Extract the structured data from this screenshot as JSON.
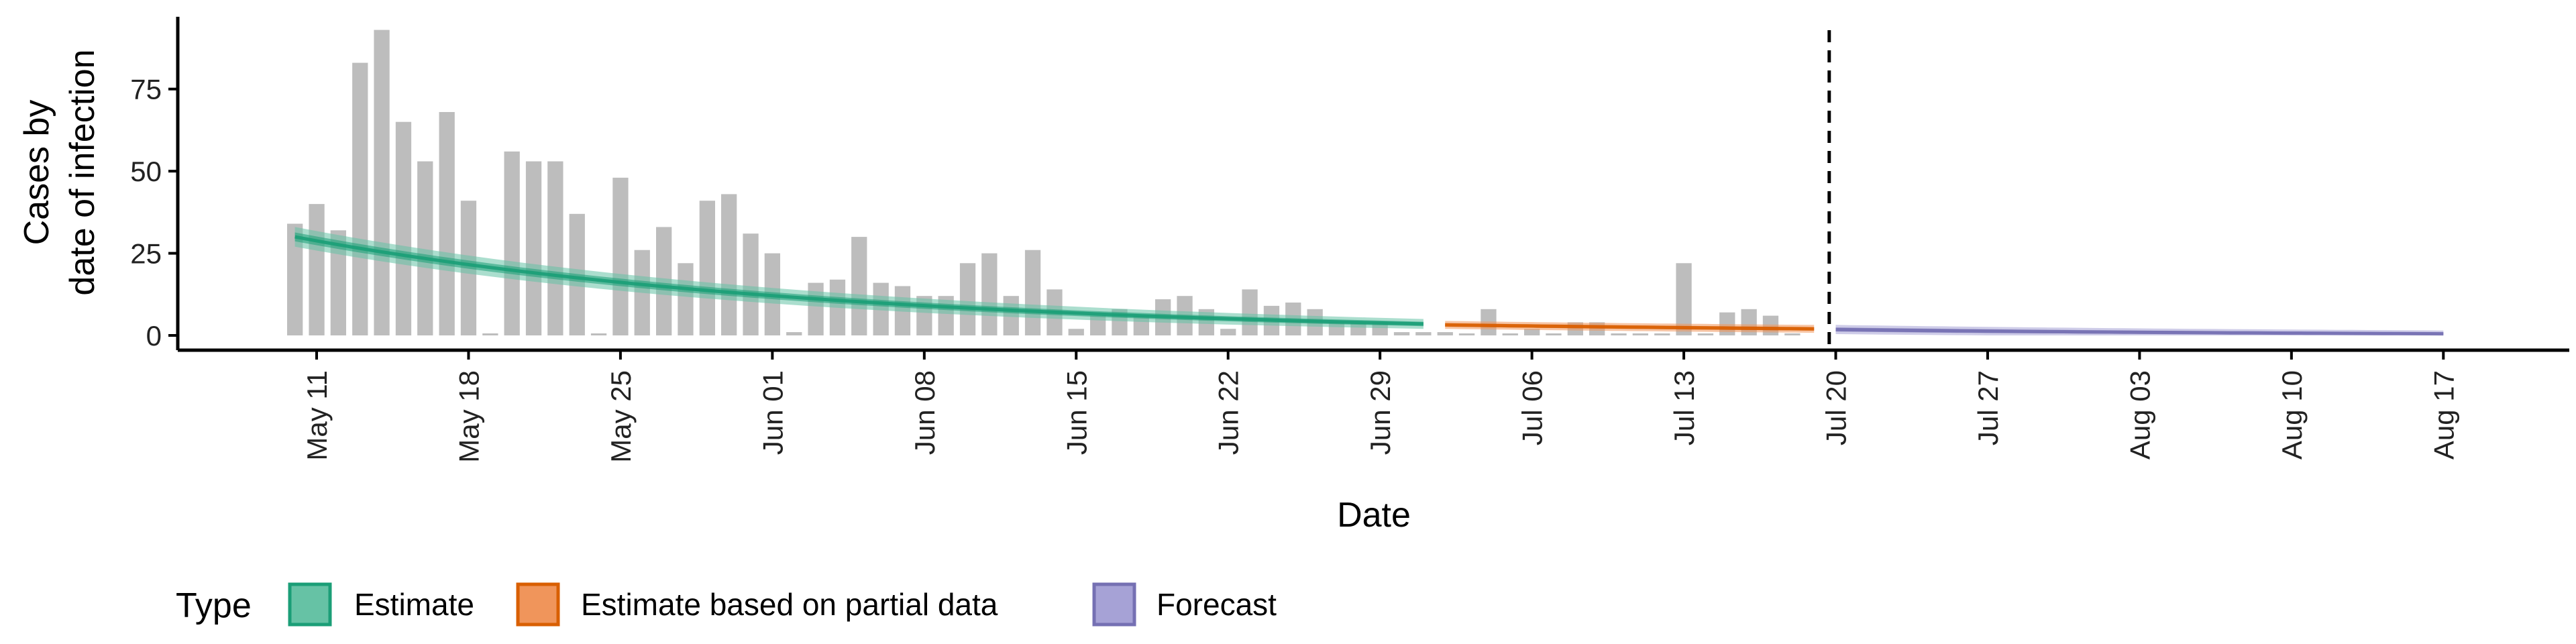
{
  "chart_data": {
    "type": "bar",
    "ylabel_line1": "Cases by",
    "ylabel_line2": "date of infection",
    "xlabel": "Date",
    "ylim": [
      0,
      97
    ],
    "y_ticks": [
      0,
      25,
      50,
      75
    ],
    "x_ticks": [
      "May 11",
      "May 18",
      "May 25",
      "Jun 01",
      "Jun 08",
      "Jun 15",
      "Jun 22",
      "Jun 29",
      "Jul 06",
      "Jul 13",
      "Jul 20",
      "Jul 27",
      "Aug 03",
      "Aug 10",
      "Aug 17"
    ],
    "x_tick_day_offsets": [
      0,
      7,
      14,
      21,
      28,
      35,
      42,
      49,
      56,
      63,
      70,
      77,
      84,
      91,
      98
    ],
    "x_day_range": [
      -3,
      104
    ],
    "bars": {
      "start_day_offset": -1,
      "values": [
        34,
        40,
        32,
        83,
        93,
        65,
        53,
        68,
        41,
        0,
        56,
        53,
        53,
        37,
        0,
        48,
        26,
        33,
        22,
        41,
        43,
        31,
        25,
        1,
        16,
        17,
        30,
        16,
        15,
        12,
        12,
        22,
        25,
        12,
        26,
        14,
        2,
        6,
        8,
        6,
        11,
        12,
        8,
        2,
        14,
        9,
        10,
        8,
        4,
        4,
        4,
        1,
        1,
        1,
        0,
        8,
        0,
        2,
        0,
        4,
        4,
        0,
        0,
        0,
        22,
        0,
        7,
        8,
        6,
        0
      ]
    },
    "vline_day_offset": 69.7,
    "series": [
      {
        "name": "Estimate",
        "color": "#1b9e77",
        "fill": "#66c2a5",
        "x_start": -1,
        "x_end": 51,
        "median_start": 30,
        "median_end": 3.5,
        "band_start": 3,
        "band_end": 1.5
      },
      {
        "name": "Estimate based on partial data",
        "color": "#d95f02",
        "fill": "#f0955b",
        "x_start": 52,
        "x_end": 69,
        "median_start": 3.2,
        "median_end": 2.0,
        "band_start": 1.2,
        "band_end": 1.2
      },
      {
        "name": "Forecast",
        "color": "#7570b3",
        "fill": "#a6a2d6",
        "x_start": 70,
        "x_end": 98,
        "median_start": 1.8,
        "median_end": 0.5,
        "band_start": 1.4,
        "band_end": 1.0
      }
    ],
    "legend_title": "Type",
    "legend": [
      "Estimate",
      "Estimate based on partial data",
      "Forecast"
    ]
  }
}
